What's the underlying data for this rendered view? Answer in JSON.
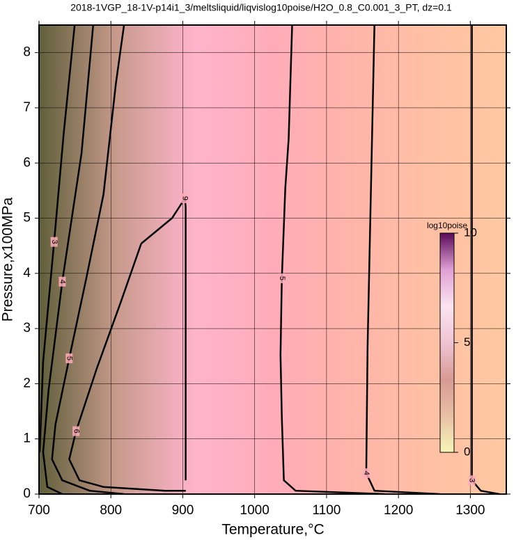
{
  "chart_data": {
    "type": "contour",
    "title": "2018-1VGP_18-1V-p14i1_3/meltsliquid/liqvislog10poise/H2O_0.8_C0.001_3_PT, dz=0.1",
    "x_label": "Temperature,°C",
    "y_label": "Pressure,x100MPa",
    "xlim": [
      700,
      1350
    ],
    "ylim": [
      0,
      8.5
    ],
    "xticks": [
      700,
      800,
      900,
      1000,
      1100,
      1200,
      1300
    ],
    "yticks": [
      0,
      1,
      2,
      3,
      4,
      5,
      6,
      7,
      8
    ],
    "grid": true,
    "line_color": "#000000",
    "background_colors": [
      "#5f5f3a",
      "#c89a8c",
      "#ffb4cc",
      "#ffacb8",
      "#ffb4aa",
      "#ffc0a4",
      "#ffc8a2"
    ],
    "contours": [
      {
        "level": 3,
        "x": [
          749.6,
          734.4,
          721,
          705.7,
          701
        ],
        "y": [
          8.5,
          6.54,
          4.57,
          2.4,
          0.76
        ]
      },
      {
        "level": 4,
        "x": [
          775.4,
          759.2,
          732.4,
          713.4,
          705.7,
          711.5,
          732.4
        ],
        "y": [
          8.5,
          6.18,
          3.85,
          1.89,
          0.76,
          0.13,
          0
        ]
      },
      {
        "level": 5,
        "x": [
          818.3,
          806.9,
          789.7,
          765.8,
          742,
          722.9,
          718.1,
          732.4,
          770.6,
          818.3
        ],
        "y": [
          8.5,
          7.44,
          5.43,
          3.91,
          2.46,
          1.26,
          0.63,
          0.25,
          0.06,
          0
        ]
      },
      {
        "level": 6,
        "x": [
          842.2,
          813.5,
          780.2,
          751.5,
          742,
          756.3,
          789.7,
          875.6,
          904.2
        ],
        "y": [
          4.54,
          3.47,
          2.27,
          1.14,
          0.63,
          0.25,
          0.13,
          0.06,
          0.06
        ]
      },
      {
        "level": 9,
        "x": [
          904,
          904,
          903,
          885,
          842.2
        ],
        "y": [
          0.25,
          5.2,
          5.36,
          5.0,
          4.54
        ]
      },
      {
        "level": 5,
        "x": [
          1052.1,
          1047.3,
          1042.6,
          1037.8,
          1035.9,
          1037.8,
          1040.6,
          1056.9,
          1180.9
        ],
        "y": [
          8.5,
          6.44,
          5.55,
          3.91,
          2.52,
          1.39,
          0.25,
          0.06,
          0
        ]
      },
      {
        "level": 4,
        "x": [
          1166.6,
          1161.8,
          1157,
          1155.2,
          1166.6,
          1257.3
        ],
        "y": [
          8.5,
          5.55,
          2.65,
          0.38,
          0.06,
          0
        ]
      },
      {
        "level": 3,
        "x": [
          1302.1,
          1302.1,
          1302.1,
          1314.5,
          1340.3
        ],
        "y": [
          8.5,
          5.5,
          0.25,
          0.06,
          0
        ]
      }
    ],
    "colorbar": {
      "label": "log10poise",
      "lim": [
        0,
        10
      ],
      "ticks": [
        0,
        5,
        10
      ],
      "colors": [
        "#f6f6b8",
        "#e8c0a4",
        "#d89a94",
        "#f0c4d4",
        "#fbe4f0",
        "#e0a0d4",
        "#5a0a5a"
      ]
    }
  }
}
